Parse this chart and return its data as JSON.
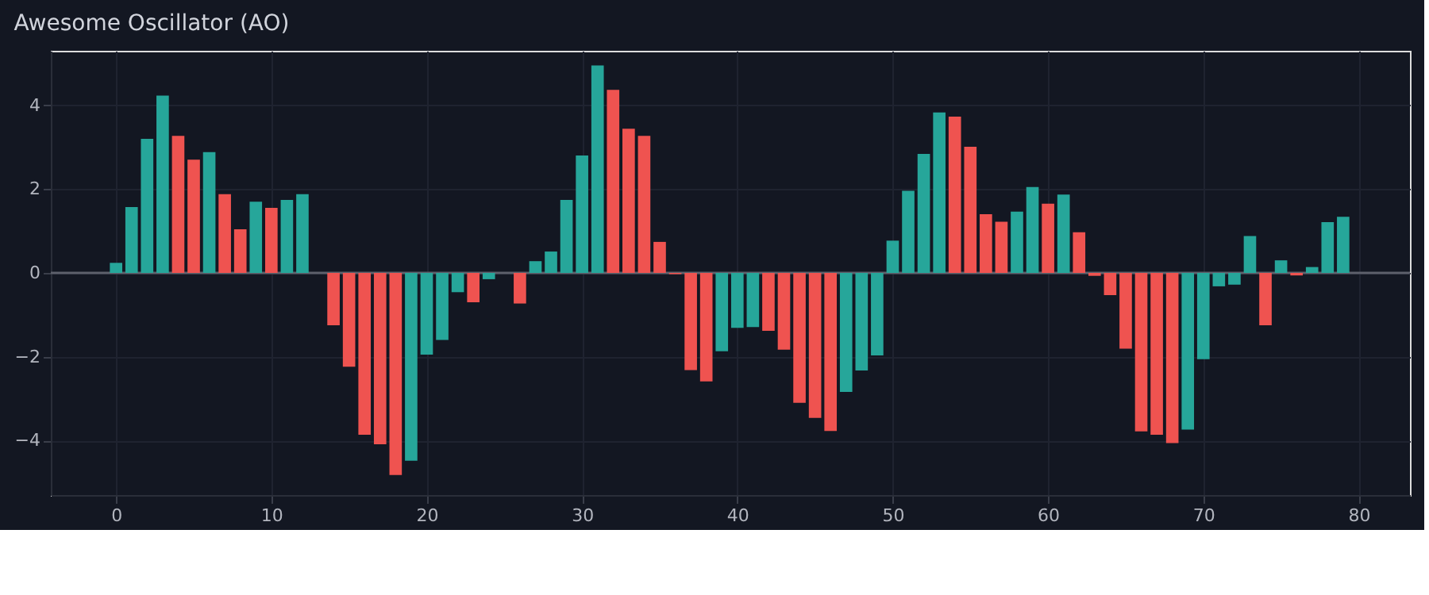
{
  "chart_data": {
    "type": "bar",
    "title": "Awesome Oscillator (AO)",
    "x": [
      0,
      1,
      2,
      3,
      4,
      5,
      6,
      7,
      8,
      9,
      10,
      11,
      12,
      13,
      14,
      15,
      16,
      17,
      18,
      19,
      20,
      21,
      22,
      23,
      24,
      25,
      26,
      27,
      28,
      29,
      30,
      31,
      32,
      33,
      34,
      35,
      36,
      37,
      38,
      39,
      40,
      41,
      42,
      43,
      44,
      45,
      46,
      47,
      48,
      49,
      50,
      51,
      52,
      53,
      54,
      55,
      56,
      57,
      58,
      59,
      60,
      61,
      62,
      63,
      64,
      65,
      66,
      67,
      68,
      69,
      70,
      71,
      72,
      73,
      74,
      75,
      76,
      77,
      78,
      79
    ],
    "values": [
      0.24,
      1.57,
      3.2,
      4.23,
      3.27,
      2.7,
      2.88,
      1.88,
      1.04,
      1.7,
      1.55,
      1.74,
      1.88,
      null,
      -1.25,
      -2.24,
      -3.86,
      -4.09,
      -4.82,
      -4.48,
      -1.95,
      -1.6,
      -0.46,
      -0.7,
      -0.15,
      null,
      -0.73,
      0.28,
      0.51,
      1.74,
      2.8,
      4.95,
      4.37,
      3.44,
      3.27,
      0.74,
      -0.03,
      -2.32,
      -2.59,
      -1.87,
      -1.31,
      -1.29,
      -1.38,
      -1.83,
      -3.1,
      -3.46,
      -3.77,
      -2.84,
      -2.33,
      -1.97,
      0.77,
      1.96,
      2.84,
      3.83,
      3.73,
      3.01,
      1.4,
      1.22,
      1.46,
      2.05,
      1.65,
      1.87,
      0.97,
      -0.07,
      -0.53,
      -1.81,
      -3.78,
      -3.86,
      -4.06,
      -3.74,
      -2.06,
      -0.32,
      -0.28,
      0.88,
      -1.25,
      0.3,
      -0.06,
      0.14,
      1.21,
      1.34
    ],
    "colors": [
      "#26a69a",
      "#26a69a",
      "#26a69a",
      "#26a69a",
      "#ef5350",
      "#ef5350",
      "#26a69a",
      "#ef5350",
      "#ef5350",
      "#26a69a",
      "#ef5350",
      "#26a69a",
      "#26a69a",
      "#ef5350",
      "#ef5350",
      "#ef5350",
      "#ef5350",
      "#ef5350",
      "#ef5350",
      "#26a69a",
      "#26a69a",
      "#26a69a",
      "#26a69a",
      "#ef5350",
      "#26a69a",
      "#26a69a",
      "#ef5350",
      "#26a69a",
      "#26a69a",
      "#26a69a",
      "#26a69a",
      "#26a69a",
      "#ef5350",
      "#ef5350",
      "#ef5350",
      "#ef5350",
      "#ef5350",
      "#ef5350",
      "#ef5350",
      "#26a69a",
      "#26a69a",
      "#26a69a",
      "#ef5350",
      "#ef5350",
      "#ef5350",
      "#ef5350",
      "#ef5350",
      "#26a69a",
      "#26a69a",
      "#26a69a",
      "#26a69a",
      "#26a69a",
      "#26a69a",
      "#26a69a",
      "#ef5350",
      "#ef5350",
      "#ef5350",
      "#ef5350",
      "#26a69a",
      "#26a69a",
      "#ef5350",
      "#26a69a",
      "#ef5350",
      "#ef5350",
      "#ef5350",
      "#ef5350",
      "#ef5350",
      "#ef5350",
      "#ef5350",
      "#26a69a",
      "#26a69a",
      "#26a69a",
      "#26a69a",
      "#26a69a",
      "#ef5350",
      "#26a69a",
      "#ef5350",
      "#26a69a",
      "#26a69a",
      "#26a69a"
    ],
    "xlim": [
      -4.2,
      83.3
    ],
    "ylim": [
      -5.3,
      5.3
    ],
    "xticks": [
      0,
      10,
      20,
      30,
      40,
      50,
      60,
      70,
      80
    ],
    "yticks": [
      -4,
      -2,
      0,
      2,
      4
    ],
    "grid": true,
    "ref_lines": [
      {
        "axis": "y",
        "value": 0,
        "color": "#5d606b"
      }
    ]
  }
}
